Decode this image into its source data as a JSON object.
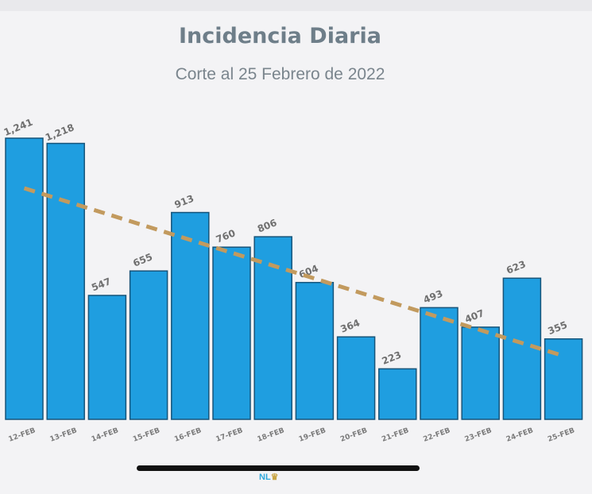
{
  "chart_data": {
    "type": "bar",
    "title": "Incidencia Diaria",
    "subtitle": "Corte al 25 Febrero de 2022",
    "categories": [
      "12-FEB",
      "13-FEB",
      "14-FEB",
      "15-FEB",
      "16-FEB",
      "17-FEB",
      "18-FEB",
      "19-FEB",
      "20-FEB",
      "21-FEB",
      "22-FEB",
      "23-FEB",
      "24-FEB",
      "25-FEB"
    ],
    "values": [
      1241,
      1218,
      547,
      655,
      913,
      760,
      806,
      604,
      364,
      223,
      493,
      407,
      623,
      355
    ],
    "value_labels": [
      "1,241",
      "1,218",
      "547",
      "655",
      "913",
      "760",
      "806",
      "604",
      "364",
      "223",
      "493",
      "407",
      "623",
      "355"
    ],
    "trendline": {
      "style": "dashed",
      "start": 1020,
      "end": 280
    },
    "xlabel": "",
    "ylabel": "",
    "ylim": [
      0,
      1241
    ],
    "grid": false,
    "colors": {
      "bar": "#1f9ee0",
      "bar_edge": "#16547a",
      "trend": "#c29a5e",
      "label": "#6f6f6f"
    }
  },
  "branding": {
    "logo_text": "NL",
    "crown_icon": "crown-icon"
  }
}
